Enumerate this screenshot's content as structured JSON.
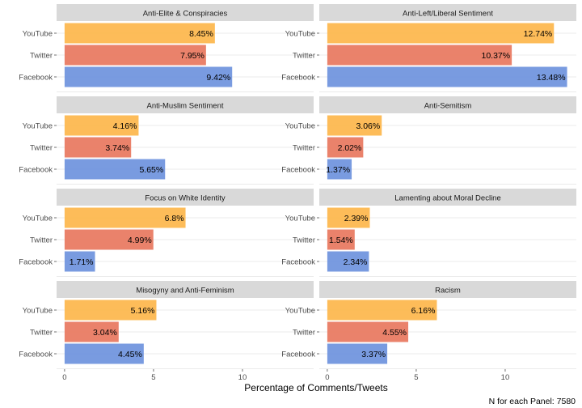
{
  "colors": {
    "YouTube": "#FDB64B",
    "Twitter": "#E8775E",
    "Facebook": "#6E93DD",
    "strip_bg": "#D9D9D9",
    "grid": "#EBEBEB",
    "panel_bg": "#FFFFFF"
  },
  "chart_data": {
    "type": "bar",
    "orientation": "horizontal",
    "facets": [
      "Anti-Elite & Conspiracies",
      "Anti-Left/Liberal Sentiment",
      "Anti-Muslim Sentiment",
      "Anti-Semitism",
      "Focus on White Identity",
      "Lamenting about Moral Decline",
      "Misogyny and Anti-Feminism",
      "Racism"
    ],
    "categories": [
      "YouTube",
      "Twitter",
      "Facebook"
    ],
    "series": [
      {
        "facet": "Anti-Elite & Conspiracies",
        "values": [
          8.45,
          7.95,
          9.42
        ],
        "labels": [
          "8.45%",
          "7.95%",
          "9.42%"
        ]
      },
      {
        "facet": "Anti-Left/Liberal Sentiment",
        "values": [
          12.74,
          10.37,
          13.48
        ],
        "labels": [
          "12.74%",
          "10.37%",
          "13.48%"
        ]
      },
      {
        "facet": "Anti-Muslim Sentiment",
        "values": [
          4.16,
          3.74,
          5.65
        ],
        "labels": [
          "4.16%",
          "3.74%",
          "5.65%"
        ]
      },
      {
        "facet": "Anti-Semitism",
        "values": [
          3.06,
          2.02,
          1.37
        ],
        "labels": [
          "3.06%",
          "2.02%",
          "1.37%"
        ]
      },
      {
        "facet": "Focus on White Identity",
        "values": [
          6.8,
          4.99,
          1.71
        ],
        "labels": [
          "6.8%",
          "4.99%",
          "1.71%"
        ]
      },
      {
        "facet": "Lamenting about Moral Decline",
        "values": [
          2.39,
          1.54,
          2.34
        ],
        "labels": [
          "2.39%",
          "1.54%",
          "2.34%"
        ]
      },
      {
        "facet": "Misogyny and Anti-Feminism",
        "values": [
          5.16,
          3.04,
          4.45
        ],
        "labels": [
          "5.16%",
          "3.04%",
          "4.45%"
        ]
      },
      {
        "facet": "Racism",
        "values": [
          6.16,
          4.55,
          3.37
        ],
        "labels": [
          "6.16%",
          "4.55%",
          "3.37%"
        ]
      }
    ],
    "x_ticks": [
      "0",
      "5",
      "10"
    ],
    "x_tick_values": [
      0,
      5,
      10
    ],
    "xlim": [
      -0.45,
      14.0
    ],
    "xlabel": "Percentage of Comments/Tweets",
    "ylabel": "",
    "caption": "N for each Panel: 7580",
    "legend": "none",
    "grid": true
  }
}
